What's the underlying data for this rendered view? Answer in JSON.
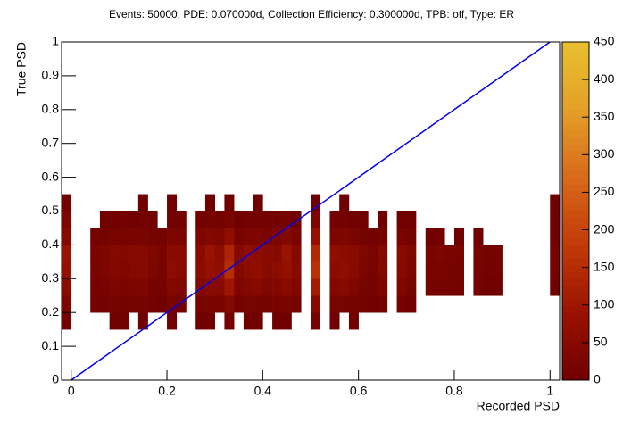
{
  "chart_data": {
    "type": "heatmap",
    "title": "Events: 50000, PDE: 0.070000d, Collection Efficiency: 0.300000d, TPB: off, Type: ER",
    "x_label": "Recorded PSD",
    "y_label": "True PSD",
    "xlim": [
      -0.02,
      1.02
    ],
    "ylim": [
      0,
      1
    ],
    "zlim": [
      0,
      450
    ],
    "xticks": [
      0,
      0.2,
      0.4,
      0.6,
      0.8,
      1
    ],
    "yticks": [
      0,
      0.1,
      0.2,
      0.3,
      0.4,
      0.5,
      0.6,
      0.7,
      0.8,
      0.9,
      1
    ],
    "zticks": [
      0,
      50,
      100,
      150,
      200,
      250,
      300,
      350,
      400,
      450
    ],
    "colormap": [
      "#6e0000",
      "#9a1200",
      "#c23a08",
      "#d8691a",
      "#e4a028",
      "#e8c030"
    ],
    "x_bins": [
      -0.02,
      0,
      0.02,
      0.04,
      0.06,
      0.08,
      0.1,
      0.12,
      0.14,
      0.16,
      0.18,
      0.2,
      0.22,
      0.24,
      0.26,
      0.28,
      0.3,
      0.32,
      0.34,
      0.36,
      0.38,
      0.4,
      0.42,
      0.44,
      0.46,
      0.48,
      0.5,
      0.52,
      0.54,
      0.56,
      0.58,
      0.6,
      0.62,
      0.64,
      0.66,
      0.68,
      0.7,
      0.72,
      0.74,
      0.76,
      0.78,
      0.8,
      0.82,
      0.84,
      0.86,
      0.88,
      0.9,
      0.92,
      0.94,
      0.96,
      0.98,
      1,
      1.02
    ],
    "y_bins": [
      0.15,
      0.2,
      0.25,
      0.3,
      0.35,
      0.4,
      0.45,
      0.5,
      0.55
    ],
    "z": [
      [
        10,
        0,
        0,
        0,
        0,
        5,
        5,
        0,
        5,
        0,
        0,
        5,
        0,
        0,
        5,
        5,
        0,
        10,
        0,
        5,
        5,
        0,
        5,
        5,
        0,
        0,
        10,
        0,
        5,
        0,
        5,
        0,
        0,
        0,
        0,
        0,
        0,
        0,
        0,
        0,
        0,
        0,
        0,
        0,
        0,
        0,
        0,
        0,
        0,
        0,
        0,
        0
      ],
      [
        30,
        0,
        0,
        10,
        10,
        15,
        10,
        15,
        15,
        10,
        5,
        20,
        15,
        0,
        20,
        25,
        20,
        40,
        10,
        20,
        20,
        15,
        20,
        25,
        15,
        0,
        45,
        0,
        20,
        20,
        15,
        10,
        5,
        10,
        0,
        10,
        5,
        0,
        0,
        0,
        0,
        0,
        0,
        0,
        0,
        0,
        0,
        0,
        0,
        0,
        0,
        0
      ],
      [
        60,
        0,
        0,
        15,
        20,
        30,
        25,
        30,
        35,
        20,
        15,
        40,
        35,
        0,
        40,
        55,
        50,
        100,
        30,
        40,
        50,
        35,
        40,
        55,
        35,
        0,
        110,
        0,
        40,
        50,
        35,
        20,
        15,
        30,
        0,
        35,
        20,
        0,
        15,
        15,
        15,
        10,
        0,
        10,
        5,
        5,
        0,
        0,
        0,
        0,
        0,
        5
      ],
      [
        80,
        0,
        0,
        20,
        30,
        40,
        35,
        45,
        50,
        30,
        20,
        60,
        50,
        0,
        60,
        80,
        70,
        150,
        40,
        60,
        70,
        50,
        60,
        80,
        50,
        0,
        160,
        0,
        60,
        70,
        50,
        30,
        20,
        40,
        0,
        50,
        30,
        0,
        20,
        25,
        20,
        15,
        0,
        15,
        10,
        10,
        0,
        0,
        0,
        0,
        0,
        10
      ],
      [
        90,
        0,
        0,
        25,
        35,
        45,
        40,
        50,
        45,
        35,
        25,
        55,
        55,
        0,
        55,
        90,
        60,
        130,
        45,
        70,
        60,
        55,
        50,
        90,
        45,
        0,
        140,
        0,
        70,
        60,
        55,
        35,
        25,
        45,
        0,
        55,
        35,
        0,
        25,
        30,
        25,
        20,
        0,
        20,
        15,
        10,
        0,
        0,
        0,
        0,
        0,
        10
      ],
      [
        50,
        0,
        0,
        10,
        15,
        20,
        20,
        25,
        25,
        15,
        10,
        30,
        25,
        0,
        30,
        40,
        35,
        70,
        20,
        30,
        35,
        25,
        30,
        40,
        25,
        0,
        80,
        0,
        30,
        35,
        25,
        15,
        10,
        20,
        0,
        25,
        15,
        0,
        5,
        10,
        0,
        5,
        0,
        5,
        0,
        0,
        0,
        0,
        0,
        0,
        0,
        5
      ],
      [
        30,
        0,
        0,
        0,
        5,
        5,
        10,
        5,
        10,
        5,
        0,
        10,
        10,
        0,
        10,
        15,
        10,
        25,
        5,
        10,
        10,
        10,
        10,
        15,
        5,
        0,
        30,
        0,
        10,
        10,
        5,
        5,
        0,
        5,
        0,
        5,
        5,
        0,
        0,
        0,
        0,
        0,
        0,
        0,
        0,
        0,
        0,
        0,
        0,
        0,
        0,
        5
      ],
      [
        10,
        0,
        0,
        0,
        0,
        0,
        0,
        0,
        5,
        0,
        0,
        5,
        0,
        0,
        0,
        5,
        0,
        5,
        0,
        0,
        5,
        0,
        0,
        0,
        0,
        0,
        5,
        0,
        0,
        5,
        0,
        0,
        0,
        0,
        0,
        0,
        0,
        0,
        0,
        0,
        0,
        0,
        0,
        0,
        0,
        0,
        0,
        0,
        0,
        0,
        0,
        5
      ]
    ],
    "line": {
      "x": [
        0,
        1
      ],
      "y": [
        0,
        1
      ],
      "color": "#0000ee"
    }
  }
}
